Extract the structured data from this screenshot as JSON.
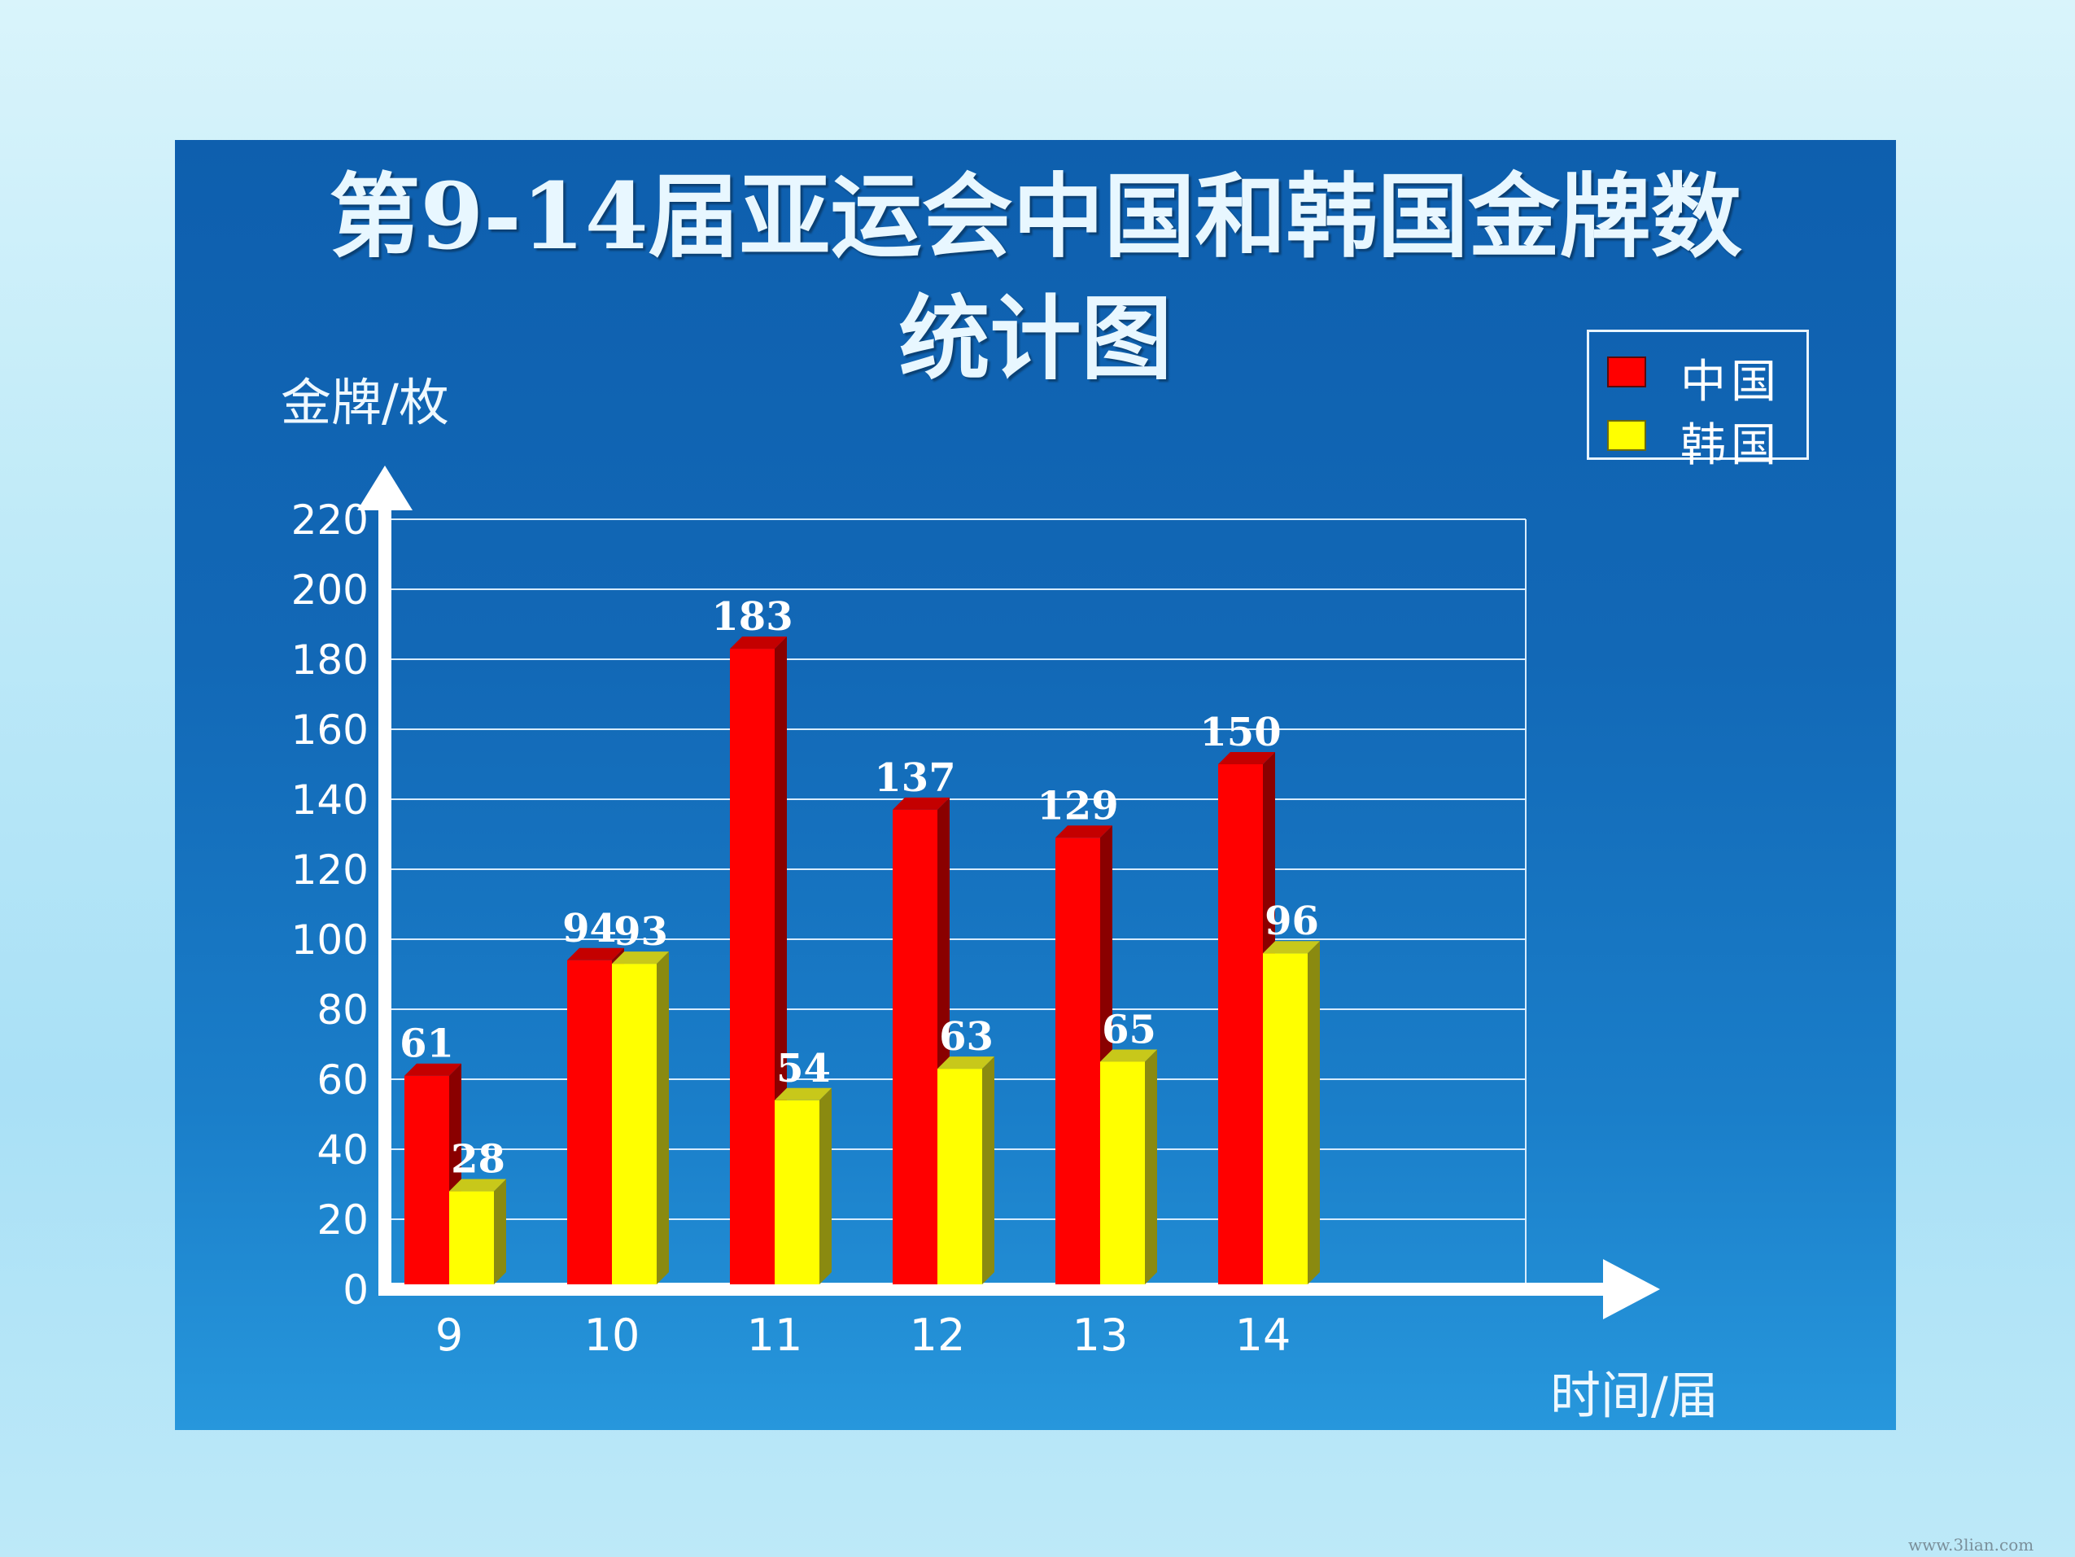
{
  "chart_data": {
    "type": "bar",
    "title": "第9-14届亚运会中国和韩国金牌数统计图",
    "title_lines": [
      "第9-14届亚运会中国和韩国金牌数",
      "统计图"
    ],
    "xlabel": "时间/届",
    "ylabel": "金牌/枚",
    "categories": [
      "9",
      "10",
      "11",
      "12",
      "13",
      "14"
    ],
    "series": [
      {
        "name": "中国",
        "values": [
          61,
          94,
          183,
          137,
          129,
          150
        ],
        "color": "#ff0000",
        "side_color": "#8a0000",
        "top_color": "#c40000"
      },
      {
        "name": "韩国",
        "values": [
          28,
          93,
          54,
          63,
          65,
          96
        ],
        "color": "#ffff00",
        "side_color": "#8a8a10",
        "top_color": "#c8c81a"
      }
    ],
    "data_labels": [
      [
        "61",
        "94",
        "183",
        "137",
        "129",
        "150"
      ],
      [
        "28",
        "93",
        "54",
        "63",
        "65",
        "96"
      ]
    ],
    "ylim": [
      0,
      220
    ],
    "yticks": [
      0,
      20,
      40,
      60,
      80,
      100,
      120,
      140,
      160,
      180,
      200,
      220
    ],
    "grid": true,
    "legend_position": "top-right"
  },
  "watermark": "www.3lian.com"
}
